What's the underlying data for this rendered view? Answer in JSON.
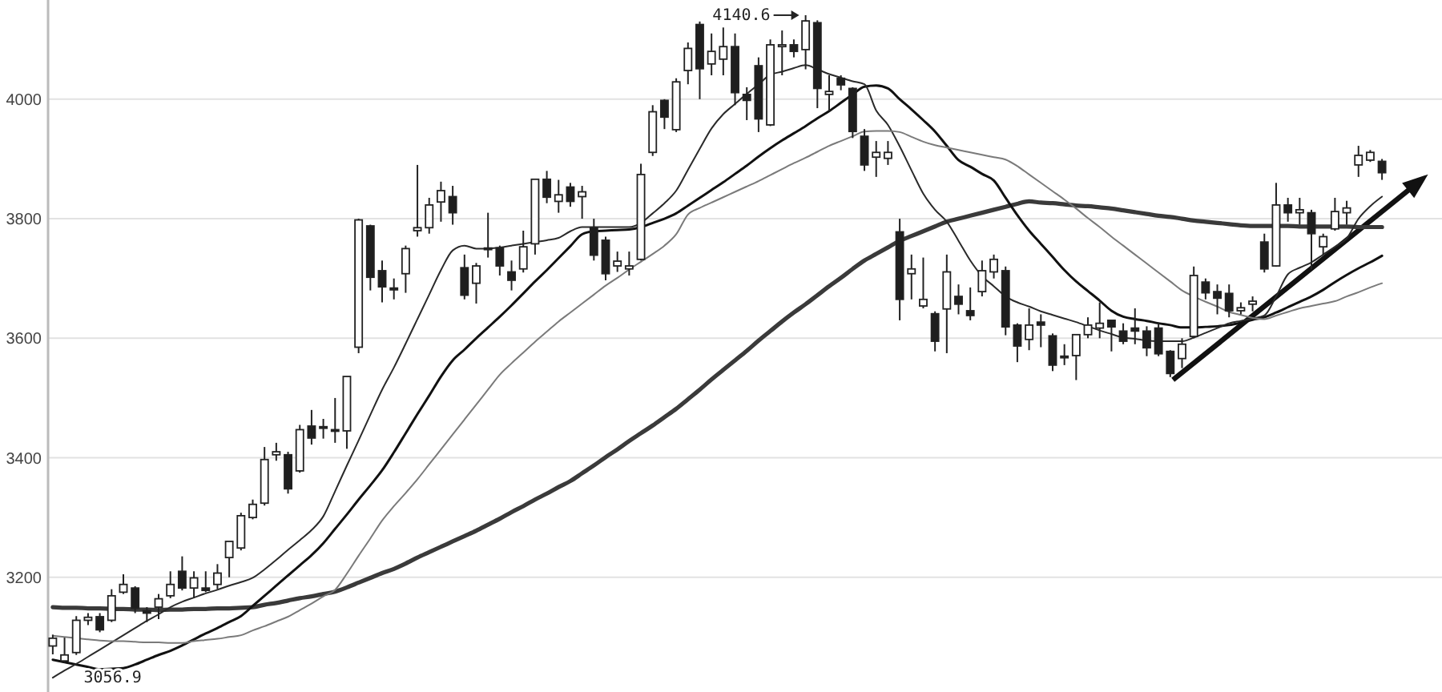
{
  "chart_data": {
    "type": "candlestick",
    "categories": [
      null,
      null,
      null,
      null,
      null,
      null,
      null,
      null,
      null,
      null,
      null,
      null,
      null,
      null,
      null,
      null,
      null,
      null,
      null,
      null,
      null,
      null,
      null,
      null,
      null,
      null,
      null,
      null,
      null,
      null,
      null,
      null,
      null,
      null,
      null,
      null,
      null,
      null,
      null,
      null,
      null,
      null,
      null,
      null,
      null,
      null,
      null,
      null,
      null,
      null,
      null,
      null,
      null,
      null,
      null,
      null,
      null,
      null,
      null,
      null,
      null,
      null,
      null,
      null,
      null,
      null,
      null,
      null,
      null,
      null,
      null,
      null,
      null,
      null,
      null,
      null,
      null,
      null,
      null,
      null,
      null,
      null,
      null,
      null,
      null,
      null,
      null,
      null,
      null,
      null,
      null,
      null,
      null,
      null,
      null,
      null,
      null,
      null,
      null,
      null,
      null,
      null,
      null,
      null,
      null,
      null,
      null,
      null,
      null,
      null,
      null,
      null,
      null,
      null
    ],
    "ohlc": [
      [
        3085,
        3104,
        3071,
        3098
      ],
      [
        3060,
        3099,
        3056.9,
        3070
      ],
      [
        3074,
        3135,
        3070,
        3128
      ],
      [
        3128,
        3140,
        3120,
        3133
      ],
      [
        3134,
        3140,
        3108,
        3112
      ],
      [
        3128,
        3180,
        3125,
        3169
      ],
      [
        3175,
        3205,
        3172,
        3188
      ],
      [
        3182,
        3185,
        3140,
        3148
      ],
      [
        3144,
        3150,
        3125,
        3140
      ],
      [
        3150,
        3172,
        3130,
        3164
      ],
      [
        3169,
        3210,
        3165,
        3188
      ],
      [
        3210,
        3235,
        3178,
        3182
      ],
      [
        3182,
        3210,
        3165,
        3199
      ],
      [
        3182,
        3210,
        3175,
        3178
      ],
      [
        3188,
        3222,
        3180,
        3207
      ],
      [
        3233,
        3260,
        3200,
        3260
      ],
      [
        3249,
        3308,
        3245,
        3303
      ],
      [
        3300,
        3330,
        3297,
        3322
      ],
      [
        3324,
        3418,
        3320,
        3397
      ],
      [
        3405,
        3425,
        3395,
        3410
      ],
      [
        3405,
        3410,
        3340,
        3348
      ],
      [
        3378,
        3455,
        3375,
        3447
      ],
      [
        3453,
        3480,
        3422,
        3433
      ],
      [
        3452,
        3465,
        3432,
        3450
      ],
      [
        3447,
        3500,
        3425,
        3445
      ],
      [
        3445,
        3536,
        3415,
        3536
      ],
      [
        3585,
        3800,
        3575,
        3798
      ],
      [
        3788,
        3790,
        3680,
        3702
      ],
      [
        3713,
        3730,
        3660,
        3686
      ],
      [
        3684,
        3700,
        3665,
        3681
      ],
      [
        3708,
        3755,
        3676,
        3750
      ],
      [
        3780,
        3890,
        3770,
        3785
      ],
      [
        3785,
        3835,
        3775,
        3823
      ],
      [
        3828,
        3862,
        3795,
        3847
      ],
      [
        3837,
        3855,
        3790,
        3810
      ],
      [
        3718,
        3740,
        3665,
        3672
      ],
      [
        3692,
        3726,
        3658,
        3721
      ],
      [
        3751,
        3810,
        3735,
        3750
      ],
      [
        3751,
        3755,
        3705,
        3721
      ],
      [
        3711,
        3730,
        3680,
        3697
      ],
      [
        3716,
        3780,
        3710,
        3753
      ],
      [
        3758,
        3866,
        3740,
        3866
      ],
      [
        3866,
        3880,
        3826,
        3836
      ],
      [
        3829,
        3865,
        3810,
        3840
      ],
      [
        3853,
        3860,
        3820,
        3829
      ],
      [
        3837,
        3855,
        3800,
        3845
      ],
      [
        3785,
        3800,
        3730,
        3739
      ],
      [
        3764,
        3770,
        3697,
        3708
      ],
      [
        3721,
        3745,
        3711,
        3729
      ],
      [
        3716,
        3745,
        3705,
        3721
      ],
      [
        3732,
        3892,
        3730,
        3874
      ],
      [
        3911,
        3990,
        3905,
        3979
      ],
      [
        3998,
        4000,
        3950,
        3970
      ],
      [
        3949,
        4035,
        3945,
        4029
      ],
      [
        4048,
        4095,
        4025,
        4085
      ],
      [
        4125,
        4130,
        4000,
        4051
      ],
      [
        4059,
        4110,
        4040,
        4080
      ],
      [
        4067,
        4120,
        4040,
        4088
      ],
      [
        4088,
        4110,
        3990,
        4011
      ],
      [
        4008,
        4020,
        3965,
        3998
      ],
      [
        4056,
        4070,
        3945,
        3967
      ],
      [
        3957,
        4100,
        3955,
        4091
      ],
      [
        4088,
        4115,
        4040,
        4091
      ],
      [
        4091,
        4100,
        4070,
        4080
      ],
      [
        4083,
        4140.6,
        4050,
        4131
      ],
      [
        4128,
        4132,
        3985,
        4018
      ],
      [
        4008,
        4040,
        3980,
        4013
      ],
      [
        4035,
        4040,
        4015,
        4024
      ],
      [
        4018,
        4020,
        3935,
        3946
      ],
      [
        3938,
        3950,
        3880,
        3890
      ],
      [
        3903,
        3930,
        3870,
        3911
      ],
      [
        3901,
        3930,
        3890,
        3911
      ],
      [
        3778,
        3800,
        3630,
        3665
      ],
      [
        3708,
        3740,
        3665,
        3716
      ],
      [
        3654,
        3735,
        3650,
        3665
      ],
      [
        3641,
        3645,
        3578,
        3595
      ],
      [
        3649,
        3740,
        3575,
        3711
      ],
      [
        3670,
        3690,
        3640,
        3657
      ],
      [
        3646,
        3685,
        3630,
        3638
      ],
      [
        3678,
        3730,
        3670,
        3713
      ],
      [
        3711,
        3740,
        3700,
        3732
      ],
      [
        3713,
        3720,
        3605,
        3619
      ],
      [
        3622,
        3625,
        3560,
        3587
      ],
      [
        3598,
        3650,
        3580,
        3622
      ],
      [
        3627,
        3640,
        3585,
        3622
      ],
      [
        3604,
        3608,
        3545,
        3555
      ],
      [
        3570,
        3590,
        3555,
        3568
      ],
      [
        3571,
        3606,
        3530,
        3606
      ],
      [
        3606,
        3635,
        3600,
        3622
      ],
      [
        3617,
        3660,
        3600,
        3625
      ],
      [
        3630,
        3630,
        3578,
        3619
      ],
      [
        3612,
        3625,
        3590,
        3595
      ],
      [
        3617,
        3650,
        3590,
        3612
      ],
      [
        3612,
        3620,
        3570,
        3584
      ],
      [
        3617,
        3625,
        3570,
        3574
      ],
      [
        3578,
        3580,
        3535,
        3541
      ],
      [
        3566,
        3600,
        3550,
        3590
      ],
      [
        3603,
        3720,
        3600,
        3705
      ],
      [
        3694,
        3700,
        3665,
        3676
      ],
      [
        3678,
        3690,
        3640,
        3667
      ],
      [
        3675,
        3690,
        3635,
        3646
      ],
      [
        3646,
        3660,
        3640,
        3651
      ],
      [
        3657,
        3670,
        3645,
        3662
      ],
      [
        3761,
        3775,
        3710,
        3716
      ],
      [
        3721,
        3860,
        3720,
        3823
      ],
      [
        3823,
        3835,
        3795,
        3810
      ],
      [
        3810,
        3835,
        3790,
        3815
      ],
      [
        3810,
        3815,
        3715,
        3775
      ],
      [
        3753,
        3775,
        3740,
        3770
      ],
      [
        3783,
        3835,
        3780,
        3812
      ],
      [
        3810,
        3830,
        3790,
        3818
      ],
      [
        3890,
        3922,
        3870,
        3906
      ],
      [
        3898,
        3915,
        3895,
        3911
      ],
      [
        3896,
        3900,
        3865,
        3877
      ]
    ],
    "series": [
      {
        "type": "line",
        "color": "#3a3a3a",
        "values": [
          3150,
          3149,
          3149,
          3148,
          3148,
          3147,
          3147,
          3146,
          3146,
          3145,
          3146,
          3146,
          3147,
          3147,
          3148,
          3148,
          3149,
          3150,
          3154,
          3157,
          3161,
          3165,
          3168,
          3172,
          3176,
          3183,
          3191,
          3199,
          3207,
          3214,
          3223,
          3233,
          3242,
          3251,
          3260,
          3269,
          3278,
          3288,
          3298,
          3309,
          3319,
          3330,
          3340,
          3351,
          3361,
          3374,
          3387,
          3401,
          3414,
          3428,
          3441,
          3454,
          3468,
          3482,
          3498,
          3514,
          3531,
          3547,
          3563,
          3579,
          3596,
          3612,
          3628,
          3643,
          3657,
          3672,
          3687,
          3701,
          3716,
          3730,
          3741,
          3752,
          3763,
          3771,
          3779,
          3787,
          3795,
          3800,
          3805,
          3810,
          3815,
          3820,
          3825,
          3829,
          3827,
          3826,
          3824,
          3822,
          3821,
          3819,
          3817,
          3814,
          3811,
          3808,
          3805,
          3803,
          3800,
          3797,
          3795,
          3793,
          3791,
          3789,
          3788,
          3788,
          3788,
          3788,
          3787,
          3787,
          3787,
          3787,
          3787,
          3786,
          3786,
          3786
        ]
      },
      {
        "type": "line",
        "color": "#111111",
        "values": [
          3062,
          3058,
          3054,
          3050,
          3046,
          3047,
          3048,
          3054,
          3062,
          3070,
          3077,
          3086,
          3096,
          3106,
          3115,
          3125,
          3135,
          3152,
          3169,
          3186,
          3203,
          3220,
          3237,
          3257,
          3281,
          3305,
          3330,
          3354,
          3379,
          3409,
          3441,
          3473,
          3504,
          3536,
          3563,
          3581,
          3600,
          3618,
          3636,
          3655,
          3675,
          3695,
          3714,
          3734,
          3754,
          3774,
          3779,
          3780,
          3781,
          3782,
          3786,
          3793,
          3800,
          3809,
          3822,
          3835,
          3848,
          3861,
          3875,
          3889,
          3904,
          3918,
          3931,
          3943,
          3955,
          3968,
          3980,
          3994,
          4008,
          4021,
          4023,
          4018,
          4000,
          3983,
          3965,
          3946,
          3922,
          3898,
          3887,
          3875,
          3864,
          3835,
          3806,
          3780,
          3758,
          3736,
          3714,
          3695,
          3679,
          3663,
          3646,
          3636,
          3632,
          3629,
          3625,
          3622,
          3618,
          3618,
          3619,
          3620,
          3622,
          3626,
          3631,
          3635,
          3643,
          3652,
          3661,
          3670,
          3681,
          3694,
          3706,
          3717,
          3727,
          3738
        ]
      },
      {
        "type": "line",
        "color": "#2a2a2a",
        "values": [
          3032,
          3044,
          3055,
          3067,
          3079,
          3091,
          3103,
          3115,
          3127,
          3138,
          3150,
          3159,
          3166,
          3173,
          3179,
          3186,
          3192,
          3199,
          3213,
          3229,
          3246,
          3262,
          3279,
          3302,
          3344,
          3387,
          3429,
          3472,
          3514,
          3551,
          3591,
          3632,
          3673,
          3714,
          3747,
          3755,
          3750,
          3750,
          3752,
          3755,
          3758,
          3761,
          3764,
          3768,
          3779,
          3786,
          3786,
          3786,
          3786,
          3786,
          3793,
          3809,
          3826,
          3847,
          3882,
          3917,
          3951,
          3975,
          3992,
          4009,
          4025,
          4041,
          4046,
          4052,
          4057,
          4050,
          4042,
          4036,
          4030,
          4025,
          3981,
          3957,
          3921,
          3881,
          3842,
          3815,
          3795,
          3763,
          3730,
          3704,
          3687,
          3670,
          3660,
          3653,
          3645,
          3639,
          3633,
          3627,
          3620,
          3613,
          3607,
          3601,
          3599,
          3596,
          3595,
          3595,
          3595,
          3601,
          3609,
          3617,
          3625,
          3629,
          3633,
          3638,
          3670,
          3707,
          3718,
          3727,
          3740,
          3753,
          3767,
          3800,
          3821,
          3837
        ]
      },
      {
        "type": "line",
        "color": "#7a7a7a",
        "values": [
          3102,
          3100,
          3098,
          3096,
          3094,
          3093,
          3093,
          3092,
          3091,
          3091,
          3090,
          3090,
          3093,
          3095,
          3097,
          3100,
          3103,
          3111,
          3118,
          3126,
          3134,
          3145,
          3156,
          3168,
          3179,
          3206,
          3236,
          3265,
          3295,
          3319,
          3341,
          3364,
          3389,
          3414,
          3439,
          3464,
          3489,
          3514,
          3539,
          3558,
          3576,
          3594,
          3611,
          3628,
          3643,
          3658,
          3673,
          3688,
          3701,
          3715,
          3728,
          3741,
          3755,
          3774,
          3807,
          3818,
          3827,
          3836,
          3845,
          3854,
          3863,
          3873,
          3883,
          3893,
          3902,
          3912,
          3922,
          3930,
          3938,
          3946,
          3947,
          3947,
          3945,
          3937,
          3929,
          3923,
          3919,
          3915,
          3911,
          3907,
          3903,
          3899,
          3888,
          3874,
          3860,
          3846,
          3832,
          3817,
          3801,
          3786,
          3770,
          3755,
          3740,
          3725,
          3710,
          3695,
          3680,
          3670,
          3661,
          3653,
          3644,
          3639,
          3634,
          3632,
          3638,
          3644,
          3650,
          3654,
          3658,
          3662,
          3670,
          3677,
          3685,
          3692
        ]
      }
    ],
    "ylim": [
      3008,
      4166
    ],
    "yticks": [
      3200,
      3400,
      3600,
      3800,
      4000
    ],
    "grid": "y",
    "tick_labels": "y",
    "annotations": [
      "4140.6",
      "3056.9"
    ]
  }
}
